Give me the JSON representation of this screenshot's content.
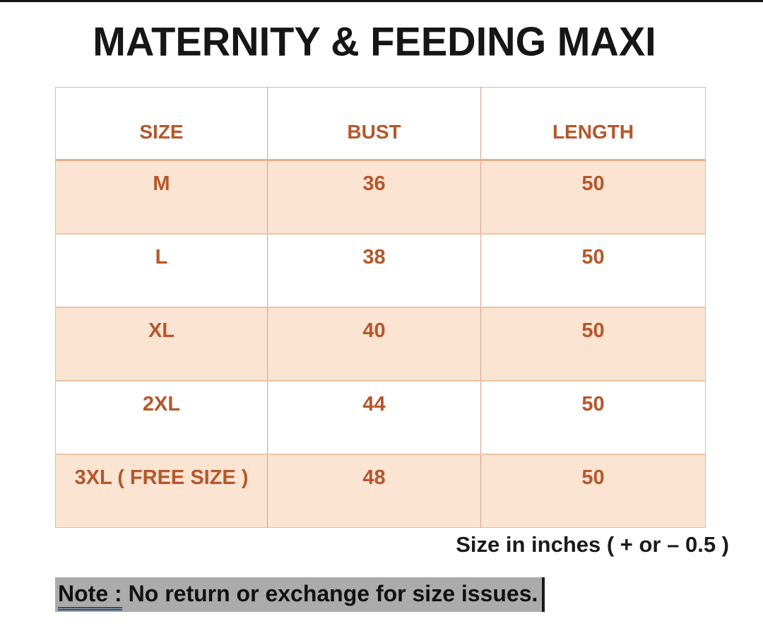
{
  "title": "MATERNITY & FEEDING MAXI",
  "table": {
    "headers": [
      "SIZE",
      "BUST",
      "LENGTH"
    ],
    "rows": [
      {
        "size": "M",
        "bust": "36",
        "length": "50"
      },
      {
        "size": "L",
        "bust": "38",
        "length": "50"
      },
      {
        "size": "XL",
        "bust": "40",
        "length": "50"
      },
      {
        "size": "2XL",
        "bust": "44",
        "length": "50"
      },
      {
        "size": "3XL ( FREE SIZE )",
        "bust": "48",
        "length": "50"
      }
    ]
  },
  "caption": "Size in inches ( + or – 0.5 )",
  "note": {
    "label": "Note :",
    "text": "No return or exchange for size issues."
  },
  "colors": {
    "accent_orange": "#b5572a",
    "row_peach": "#fce4d3",
    "grid_line": "#d9a084",
    "note_highlight": "#ababab",
    "note_underline": "#2e4d7b",
    "title_black": "#161616"
  }
}
